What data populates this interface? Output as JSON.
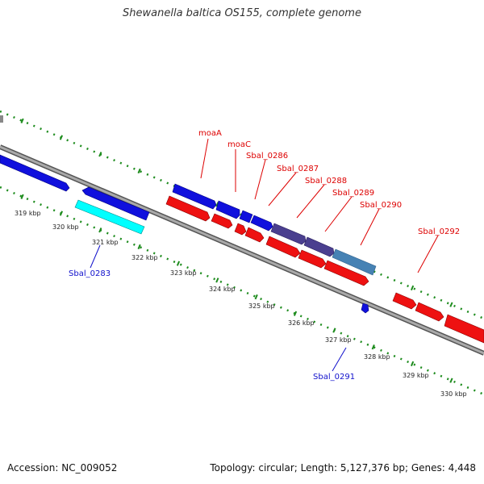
{
  "title": "Shewanella baltica OS155, complete genome",
  "footer": {
    "accession": "Accession: NC_009052",
    "genome_info": "Topology: circular; Length: 5,127,376 bp; Genes: 4,448"
  },
  "colors": {
    "background": "#ffffff",
    "backbone": "#8c8c8c",
    "backbone_edge": "#555555",
    "tick_dots": "#1e8c1e",
    "gene_blue": "#1010dd",
    "gene_red": "#ee1111",
    "gene_cyan": "#00ffff",
    "gene_purple": "#4a3f8f",
    "gene_steel": "#4682b4",
    "label_red": "#dd0000",
    "label_blue": "#1010cc"
  },
  "ruler": {
    "unit": "kbp",
    "labels": [
      "319 kbp",
      "320 kbp",
      "321 kbp",
      "322 kbp",
      "323 kbp",
      "324 kbp",
      "325 kbp",
      "326 kbp",
      "327 kbp",
      "328 kbp",
      "329 kbp",
      "330 kbp"
    ]
  },
  "gene_labels": [
    {
      "name": "moaA",
      "color": "red"
    },
    {
      "name": "moaC",
      "color": "red"
    },
    {
      "name": "Sbal_0286",
      "color": "red"
    },
    {
      "name": "Sbal_0287",
      "color": "red"
    },
    {
      "name": "Sbal_0288",
      "color": "red"
    },
    {
      "name": "Sbal_0289",
      "color": "red"
    },
    {
      "name": "Sbal_0290",
      "color": "red"
    },
    {
      "name": "Sbal_0292",
      "color": "red"
    },
    {
      "name": "Sbal_0283",
      "color": "blue"
    },
    {
      "name": "Sbal_0291",
      "color": "blue"
    }
  ]
}
